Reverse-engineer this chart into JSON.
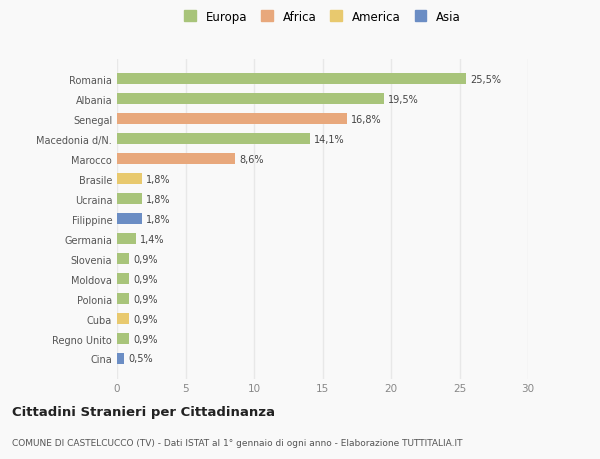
{
  "categories": [
    "Romania",
    "Albania",
    "Senegal",
    "Macedonia d/N.",
    "Marocco",
    "Brasile",
    "Ucraina",
    "Filippine",
    "Germania",
    "Slovenia",
    "Moldova",
    "Polonia",
    "Cuba",
    "Regno Unito",
    "Cina"
  ],
  "values": [
    25.5,
    19.5,
    16.8,
    14.1,
    8.6,
    1.8,
    1.8,
    1.8,
    1.4,
    0.9,
    0.9,
    0.9,
    0.9,
    0.9,
    0.5
  ],
  "labels": [
    "25,5%",
    "19,5%",
    "16,8%",
    "14,1%",
    "8,6%",
    "1,8%",
    "1,8%",
    "1,8%",
    "1,4%",
    "0,9%",
    "0,9%",
    "0,9%",
    "0,9%",
    "0,9%",
    "0,5%"
  ],
  "colors": [
    "#a8c47a",
    "#a8c47a",
    "#e8a87c",
    "#a8c47a",
    "#e8a87c",
    "#e8c96e",
    "#a8c47a",
    "#6b8dc4",
    "#a8c47a",
    "#a8c47a",
    "#a8c47a",
    "#a8c47a",
    "#e8c96e",
    "#a8c47a",
    "#6b8dc4"
  ],
  "legend_labels": [
    "Europa",
    "Africa",
    "America",
    "Asia"
  ],
  "legend_colors": [
    "#a8c47a",
    "#e8a87c",
    "#e8c96e",
    "#6b8dc4"
  ],
  "xlim": [
    0,
    30
  ],
  "xticks": [
    0,
    5,
    10,
    15,
    20,
    25,
    30
  ],
  "title": "Cittadini Stranieri per Cittadinanza",
  "subtitle": "COMUNE DI CASTELCUCCO (TV) - Dati ISTAT al 1° gennaio di ogni anno - Elaborazione TUTTITALIA.IT",
  "background_color": "#f9f9f9",
  "grid_color": "#e8e8e8",
  "bar_height": 0.55
}
